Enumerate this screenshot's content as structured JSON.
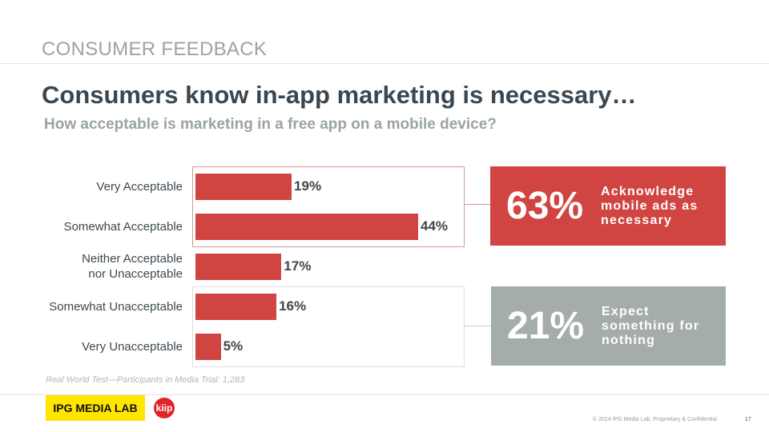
{
  "section": "CONSUMER FEEDBACK",
  "title": "Consumers know in-app marketing is necessary…",
  "subtitle": "How acceptable is marketing in a free app on a mobile device?",
  "chart_data": {
    "type": "bar",
    "orientation": "horizontal",
    "categories": [
      "Very Acceptable",
      "Somewhat Acceptable",
      "Neither Acceptable nor Unacceptable",
      "Somewhat Unacceptable",
      "Very Unacceptable"
    ],
    "category_lines": [
      [
        "Very Acceptable"
      ],
      [
        "Somewhat Acceptable"
      ],
      [
        "Neither Acceptable",
        "nor Unacceptable"
      ],
      [
        "Somewhat Unacceptable"
      ],
      [
        "Very Unacceptable"
      ]
    ],
    "values": [
      19,
      44,
      17,
      16,
      5
    ],
    "data_labels": [
      "19%",
      "44%",
      "17%",
      "16%",
      "5%"
    ],
    "bar_color": "#d04442",
    "xlim": [
      0,
      44
    ]
  },
  "callouts": [
    {
      "value": "63%",
      "text": "Acknowledge mobile ads as necessary",
      "lines": [
        "Acknowledge",
        "mobile ads as",
        "necessary"
      ],
      "color": "#d04442"
    },
    {
      "value": "21%",
      "text": "Expect something for nothing",
      "lines": [
        "Expect",
        "something for",
        "nothing"
      ],
      "color": "#a5adab"
    }
  ],
  "note": "Real World Test—Participants in Media Trial: 1,283",
  "logos": {
    "ipg": "IPG MEDIA LAB",
    "kiip": "kiip"
  },
  "footer": "© 2014 IPG Media Lab. Proprietary & Confidential",
  "page_number": "17"
}
